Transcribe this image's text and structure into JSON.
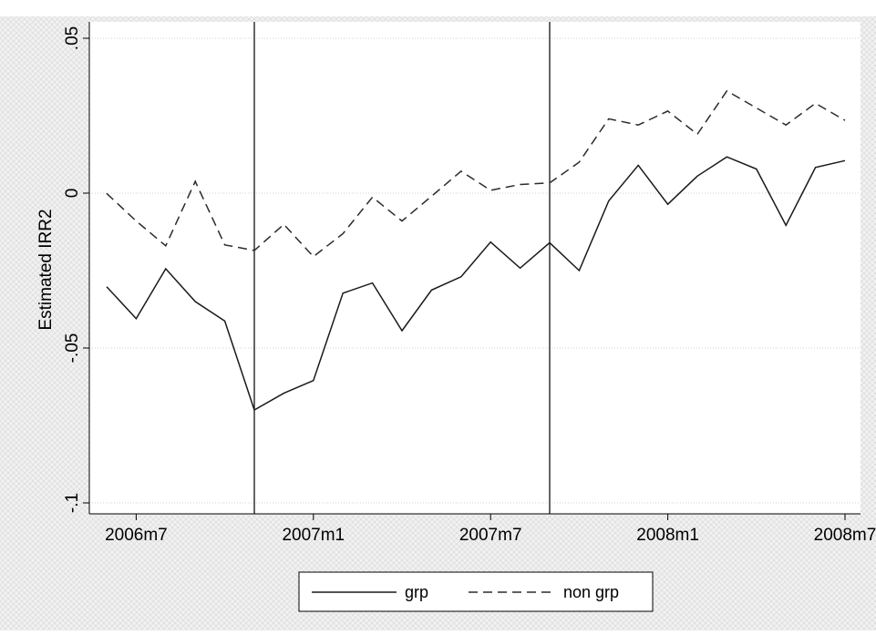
{
  "chart_data": {
    "type": "line",
    "title": "",
    "xlabel": "",
    "ylabel": "Estimated IRR2",
    "ylim": [
      -0.1,
      0.05
    ],
    "xlim": [
      "2006m6",
      "2008m7"
    ],
    "yticks": [
      {
        "value": 0.05,
        "label": ".05"
      },
      {
        "value": 0,
        "label": "0"
      },
      {
        "value": -0.05,
        "label": "-.05"
      },
      {
        "value": -0.1,
        "label": "-.1"
      }
    ],
    "xticks": [
      {
        "value": "2006m7",
        "label": "2006m7"
      },
      {
        "value": "2007m1",
        "label": "2007m1"
      },
      {
        "value": "2007m7",
        "label": "2007m7"
      },
      {
        "value": "2008m1",
        "label": "2008m1"
      },
      {
        "value": "2008m7",
        "label": "2008m7"
      }
    ],
    "grid": true,
    "legend_position": "bottom",
    "vertical_lines": [
      "2006m11",
      "2007m9"
    ],
    "x": [
      "2006m6",
      "2006m7",
      "2006m8",
      "2006m9",
      "2006m10",
      "2006m11",
      "2006m12",
      "2007m1",
      "2007m2",
      "2007m3",
      "2007m4",
      "2007m5",
      "2007m6",
      "2007m7",
      "2007m8",
      "2007m9",
      "2007m10",
      "2007m11",
      "2007m12",
      "2008m1",
      "2008m2",
      "2008m3",
      "2008m4",
      "2008m5",
      "2008m6",
      "2008m7"
    ],
    "series": [
      {
        "name": "grp",
        "style": "solid",
        "color": "#1a1a1a",
        "values": [
          -0.0302,
          -0.0405,
          -0.0244,
          -0.035,
          -0.0413,
          -0.07,
          -0.0646,
          -0.0605,
          -0.0323,
          -0.029,
          -0.0444,
          -0.0313,
          -0.027,
          -0.0158,
          -0.0242,
          -0.016,
          -0.025,
          -0.0025,
          0.009,
          -0.0036,
          0.0055,
          0.0117,
          0.0078,
          -0.0104,
          0.0083,
          0.0105
        ]
      },
      {
        "name": "non grp",
        "style": "dashed",
        "color": "#2b2b2b",
        "values": [
          -0.0001,
          -0.009,
          -0.017,
          0.0038,
          -0.0167,
          -0.0185,
          -0.0101,
          -0.0205,
          -0.0131,
          -0.0013,
          -0.009,
          -0.001,
          0.0071,
          0.0009,
          0.0028,
          0.0033,
          0.01,
          0.024,
          0.022,
          0.0265,
          0.019,
          0.033,
          0.0275,
          0.022,
          0.029,
          0.0235
        ]
      }
    ]
  },
  "legend": {
    "items": [
      {
        "label": "grp",
        "style": "solid"
      },
      {
        "label": "non grp",
        "style": "dashed"
      }
    ]
  },
  "colors": {
    "page": "#ffffff",
    "outer_background": "#ececec",
    "plot_background": "#ffffff",
    "grid": "#d0d0d0",
    "axis": "#000000"
  }
}
